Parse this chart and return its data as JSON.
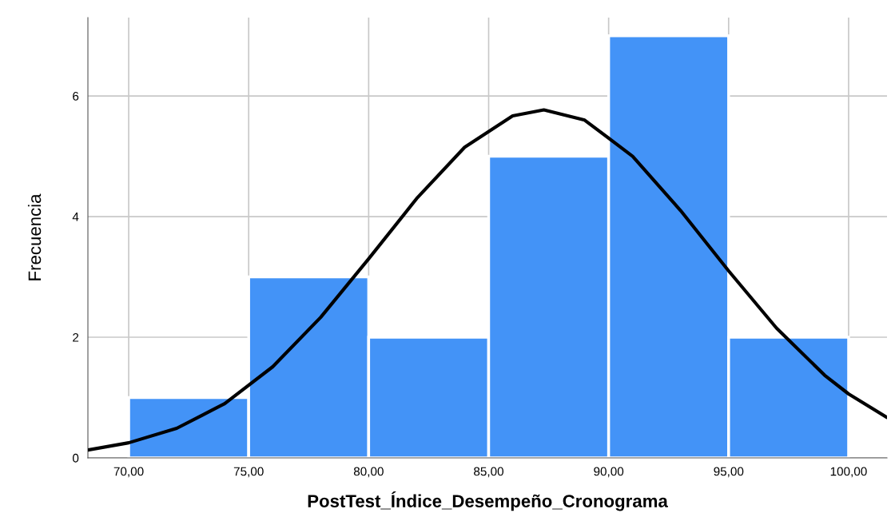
{
  "chart_data": {
    "type": "histogram",
    "xlabel": "PostTest_Índice_Desempeño_Cronograma",
    "ylabel": "Frecuencia",
    "bins": [
      70,
      75,
      80,
      85,
      90,
      95,
      100
    ],
    "series": [
      {
        "color": "#4393f7",
        "values": [
          1,
          3,
          2,
          5,
          7,
          2
        ]
      },
      {
        "type": "line",
        "color": "#000000",
        "x": [
          68.3,
          70,
          72,
          74,
          76,
          78,
          80,
          82,
          84,
          86,
          87.3,
          89,
          91,
          93,
          95,
          97,
          99,
          100,
          101.6
        ],
        "values": [
          0.13,
          0.25,
          0.49,
          0.9,
          1.51,
          2.33,
          3.3,
          4.3,
          5.15,
          5.67,
          5.77,
          5.6,
          5.0,
          4.1,
          3.1,
          2.15,
          1.37,
          1.06,
          0.67
        ]
      }
    ],
    "xlim": [
      68.3,
      101.6
    ],
    "ylim": [
      0,
      7.3
    ],
    "xticks": [
      {
        "value": 70,
        "label": "70,00"
      },
      {
        "value": 75,
        "label": "75,00"
      },
      {
        "value": 80,
        "label": "80,00"
      },
      {
        "value": 85,
        "label": "85,00"
      },
      {
        "value": 90,
        "label": "90,00"
      },
      {
        "value": 95,
        "label": "95,00"
      },
      {
        "value": 100,
        "label": "100,00"
      }
    ],
    "yticks": [
      0,
      2,
      4,
      6
    ],
    "grid": true,
    "line_style": "solid"
  }
}
